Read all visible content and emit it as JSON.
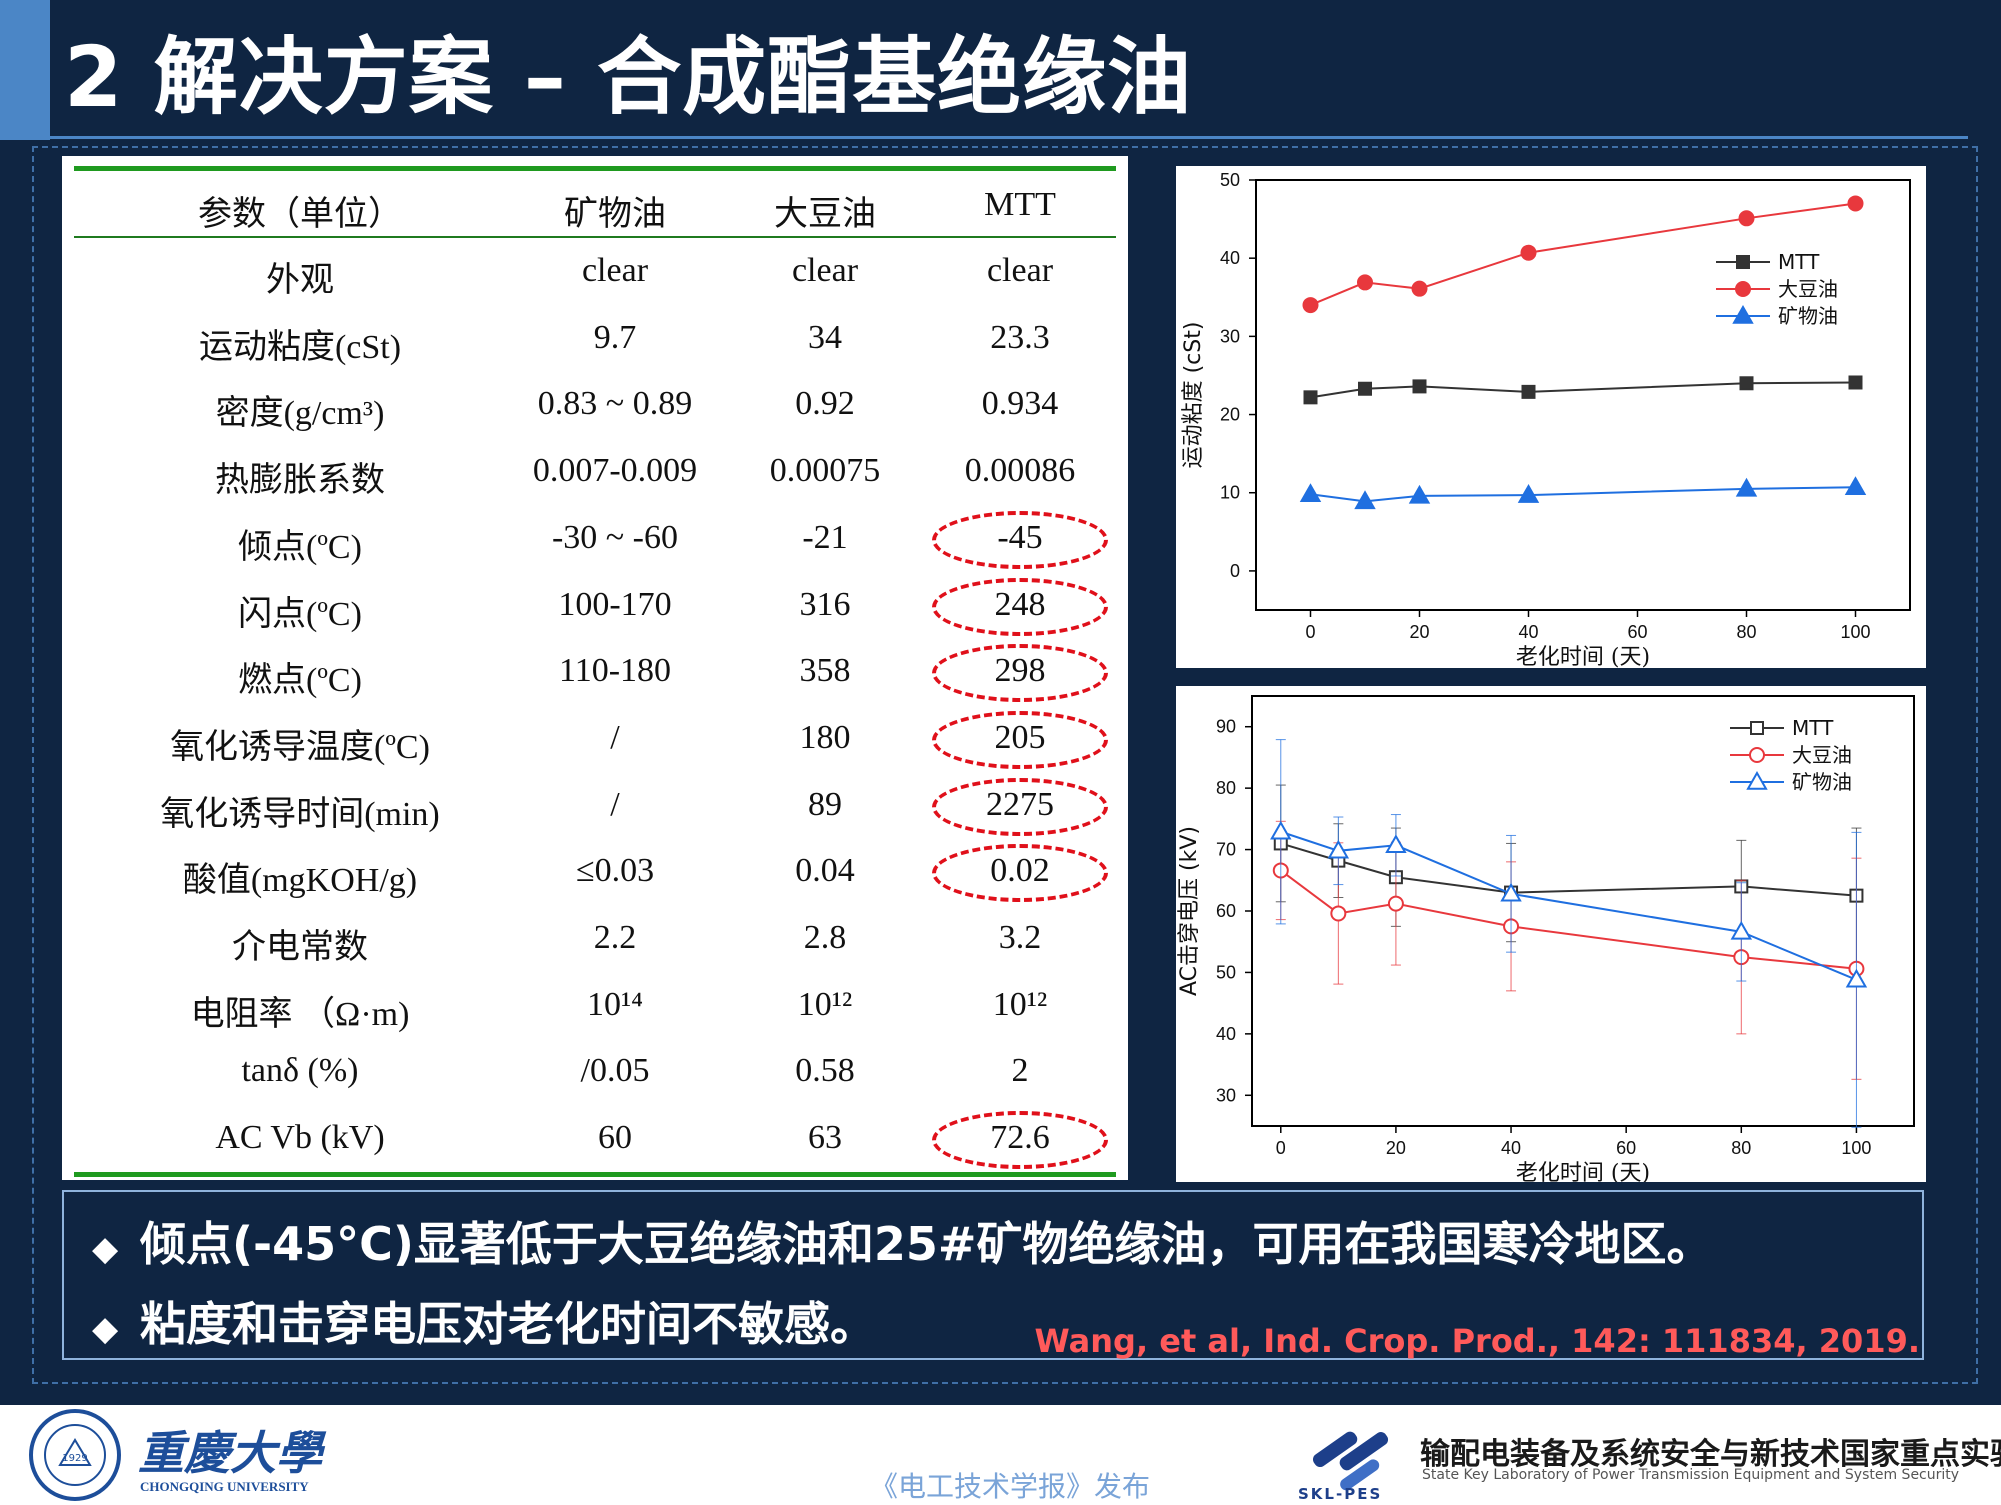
{
  "title": "2 解决方案 – 合成酯基绝缘油",
  "table": {
    "headers": [
      "参数（单位）",
      "矿物油",
      "大豆油",
      "MTT"
    ],
    "rows": [
      [
        "外观",
        "clear",
        "clear",
        "clear"
      ],
      [
        "运动粘度(cSt)",
        "9.7",
        "34",
        "23.3"
      ],
      [
        "密度(g/cm³)",
        "0.83 ~ 0.89",
        "0.92",
        "0.934"
      ],
      [
        "热膨胀系数",
        "0.007-0.009",
        "0.00075",
        "0.00086"
      ],
      [
        "倾点(ºC)",
        "-30 ~ -60",
        "-21",
        "-45"
      ],
      [
        "闪点(ºC)",
        "100-170",
        "316",
        "248"
      ],
      [
        "燃点(ºC)",
        "110-180",
        "358",
        "298"
      ],
      [
        "氧化诱导温度(ºC)",
        "/",
        "180",
        "205"
      ],
      [
        "氧化诱导时间(min)",
        "/",
        "89",
        "2275"
      ],
      [
        "酸值(mgKOH/g)",
        "≤0.03",
        "0.04",
        "0.02"
      ],
      [
        "介电常数",
        "2.2",
        "2.8",
        "3.2"
      ],
      [
        "电阻率 （Ω·m)",
        "10¹⁴",
        "10¹²",
        "10¹²"
      ],
      [
        "tanδ (%)",
        "/0.05",
        "0.58",
        "2"
      ],
      [
        "AC Vb (kV)",
        "60",
        "63",
        "72.6"
      ]
    ],
    "highlighted_rows": [
      4,
      5,
      6,
      7,
      8,
      9,
      13
    ],
    "highlight_color": "#e0101a",
    "rule_color": "#1f9a1f"
  },
  "chart_data": [
    {
      "type": "line",
      "xlabel": "老化时间 (天)",
      "ylabel": "运动粘度 (cSt)",
      "xlim": [
        -10,
        110
      ],
      "ylim": [
        -5,
        50
      ],
      "xticks": [
        0,
        20,
        40,
        60,
        80,
        100
      ],
      "yticks": [
        0,
        10,
        20,
        30,
        40,
        50
      ],
      "legend_position": "top-right",
      "series": [
        {
          "name": "MTT",
          "color": "#333333",
          "marker": "filled-square",
          "x": [
            0,
            10,
            20,
            40,
            80,
            100
          ],
          "y": [
            22.2,
            23.3,
            23.6,
            22.9,
            24.0,
            24.1
          ]
        },
        {
          "name": "大豆油",
          "color": "#e8383d",
          "marker": "filled-circle",
          "x": [
            0,
            10,
            20,
            40,
            80,
            100
          ],
          "y": [
            34.0,
            36.9,
            36.1,
            40.7,
            45.1,
            47.0
          ]
        },
        {
          "name": "矿物油",
          "color": "#1f6fe0",
          "marker": "filled-triangle",
          "x": [
            0,
            10,
            20,
            40,
            80,
            100
          ],
          "y": [
            9.8,
            8.9,
            9.6,
            9.7,
            10.5,
            10.7
          ]
        }
      ]
    },
    {
      "type": "line",
      "xlabel": "老化时间 (天)",
      "ylabel": "AC击穿电压 (kV)",
      "xlim": [
        -5,
        110
      ],
      "ylim": [
        25,
        95
      ],
      "xticks": [
        0,
        20,
        40,
        60,
        80,
        100
      ],
      "yticks": [
        30,
        40,
        50,
        60,
        70,
        80,
        90
      ],
      "legend_position": "top-right",
      "series": [
        {
          "name": "MTT",
          "color": "#333333",
          "marker": "open-square",
          "x": [
            0,
            10,
            20,
            40,
            80,
            100
          ],
          "y": [
            71.0,
            68.2,
            65.5,
            63.0,
            64.0,
            62.5
          ],
          "err": [
            9.5,
            6.0,
            8.0,
            8.0,
            7.5,
            11.0
          ]
        },
        {
          "name": "大豆油",
          "color": "#e8383d",
          "marker": "open-circle",
          "x": [
            0,
            10,
            20,
            40,
            80,
            100
          ],
          "y": [
            66.6,
            59.6,
            61.2,
            57.5,
            52.5,
            50.6
          ],
          "err": [
            8.0,
            11.5,
            10.0,
            10.5,
            12.5,
            18.0
          ]
        },
        {
          "name": "矿物油",
          "color": "#1f6fe0",
          "marker": "open-triangle",
          "x": [
            0,
            10,
            20,
            40,
            80,
            100
          ],
          "y": [
            72.9,
            69.8,
            70.7,
            62.8,
            56.6,
            48.8
          ],
          "err": [
            15.0,
            5.5,
            5.0,
            9.5,
            8.0,
            24.0
          ]
        }
      ]
    }
  ],
  "bullets": [
    "倾点(-45°C)显著低于大豆绝缘油和25#矿物绝缘油，可用在我国寒冷地区。",
    "粘度和击穿电压对老化时间不敏感。"
  ],
  "bullet_icon": "diamond-bullet-icon",
  "citation": "Wang, et al, Ind. Crop. Prod., 142: 111834, 2019.",
  "footer": {
    "university_cn": "重慶大學",
    "university_en": "CHONGQING UNIVERSITY",
    "seal_year": "1929",
    "publisher": "《电工技术学报》发布",
    "lab_cn": "输配电装备及系统安全与新技术国家重点实验室",
    "lab_en": "State Key Laboratory of Power Transmission Equipment and System Security",
    "lab_abbr": "SKL-PES"
  },
  "colors": {
    "slide_bg": "#0f2542",
    "accent_blue": "#4b86c6",
    "citation_red": "#ff5a5a"
  }
}
